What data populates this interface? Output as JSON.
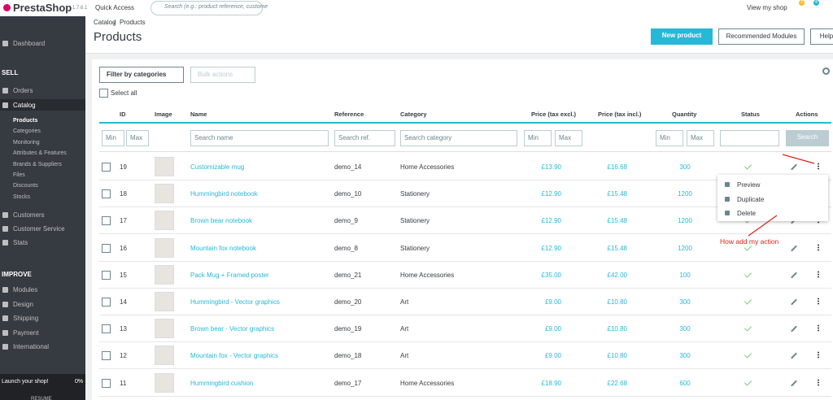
{
  "header": {
    "logo": "PrestaShop",
    "version": "1.7.6.1",
    "quick_access": "Quick Access",
    "search_placeholder": "Search (e.g.: product reference, custome",
    "view_shop": "View my shop",
    "badges": [
      "2",
      "4"
    ]
  },
  "sidebar": {
    "dashboard": "Dashboard",
    "sell": "SELL",
    "sell_items": [
      "Orders",
      "Catalog"
    ],
    "catalog_sub": [
      "Products",
      "Categories",
      "Monitoring",
      "Attributes & Features",
      "Brands & Suppliers",
      "Files",
      "Discounts",
      "Stocks"
    ],
    "sell_more": [
      "Customers",
      "Customer Service",
      "Stats"
    ],
    "improve": "IMPROVE",
    "improve_items": [
      "Modules",
      "Design",
      "Shipping",
      "Payment",
      "International"
    ],
    "launch": "Launch your shop!",
    "progress": "0%",
    "resume": "RESUME"
  },
  "page": {
    "breadcrumb": [
      "Catalog",
      "Products"
    ],
    "title": "Products",
    "buttons": [
      "New product",
      "Recommended Modules",
      "Help"
    ]
  },
  "toolbar": {
    "filter": "Filter by categories",
    "bulk": "Bulk actions",
    "select_all": "Select all"
  },
  "table": {
    "columns": [
      "ID",
      "Image",
      "Name",
      "Reference",
      "Category",
      "Price (tax excl.)",
      "Price (tax incl.)",
      "Quantity",
      "Status",
      "Actions"
    ],
    "filters": [
      "Min",
      "Max",
      "Search name",
      "Search ref.",
      "Search category",
      "Min",
      "Max",
      "Min",
      "Max",
      "Search"
    ],
    "rows": [
      {
        "id": 19,
        "name": "Customizable mug",
        "reference": "demo_14",
        "category": "Home Accessories",
        "price_excl": "£13.90",
        "price_incl": "£16.68",
        "quantity": 300
      },
      {
        "id": 18,
        "name": "Hummingbird notebook",
        "reference": "demo_10",
        "category": "Stationery",
        "price_excl": "£12.90",
        "price_incl": "£15.48",
        "quantity": 1200
      },
      {
        "id": 17,
        "name": "Brown bear notebook",
        "reference": "demo_9",
        "category": "Stationery",
        "price_excl": "£12.90",
        "price_incl": "£15.48",
        "quantity": 1200
      },
      {
        "id": 16,
        "name": "Mountain fox notebook",
        "reference": "demo_8",
        "category": "Stationery",
        "price_excl": "£12.90",
        "price_incl": "£15.48",
        "quantity": 1200
      },
      {
        "id": 15,
        "name": "Pack Mug + Framed poster",
        "reference": "demo_21",
        "category": "Home Accessories",
        "price_excl": "£35.00",
        "price_incl": "£42.00",
        "quantity": 100
      },
      {
        "id": 14,
        "name": "Hummingbird - Vector graphics",
        "reference": "demo_20",
        "category": "Art",
        "price_excl": "£9.00",
        "price_incl": "£10.80",
        "quantity": 300
      },
      {
        "id": 13,
        "name": "Brown bear - Vector graphics",
        "reference": "demo_19",
        "category": "Art",
        "price_excl": "£9.00",
        "price_incl": "£10.80",
        "quantity": 300
      },
      {
        "id": 12,
        "name": "Mountain fox - Vector graphics",
        "reference": "demo_18",
        "category": "Art",
        "price_excl": "£9.00",
        "price_incl": "£10.80",
        "quantity": 300
      },
      {
        "id": 11,
        "name": "Hummingbird cushion",
        "reference": "demo_17",
        "category": "Home Accessories",
        "price_excl": "£18.90",
        "price_incl": "£22.68",
        "quantity": 600
      }
    ]
  },
  "dropdown": [
    "Preview",
    "Duplicate",
    "Delete"
  ],
  "annotation": "How add my action"
}
